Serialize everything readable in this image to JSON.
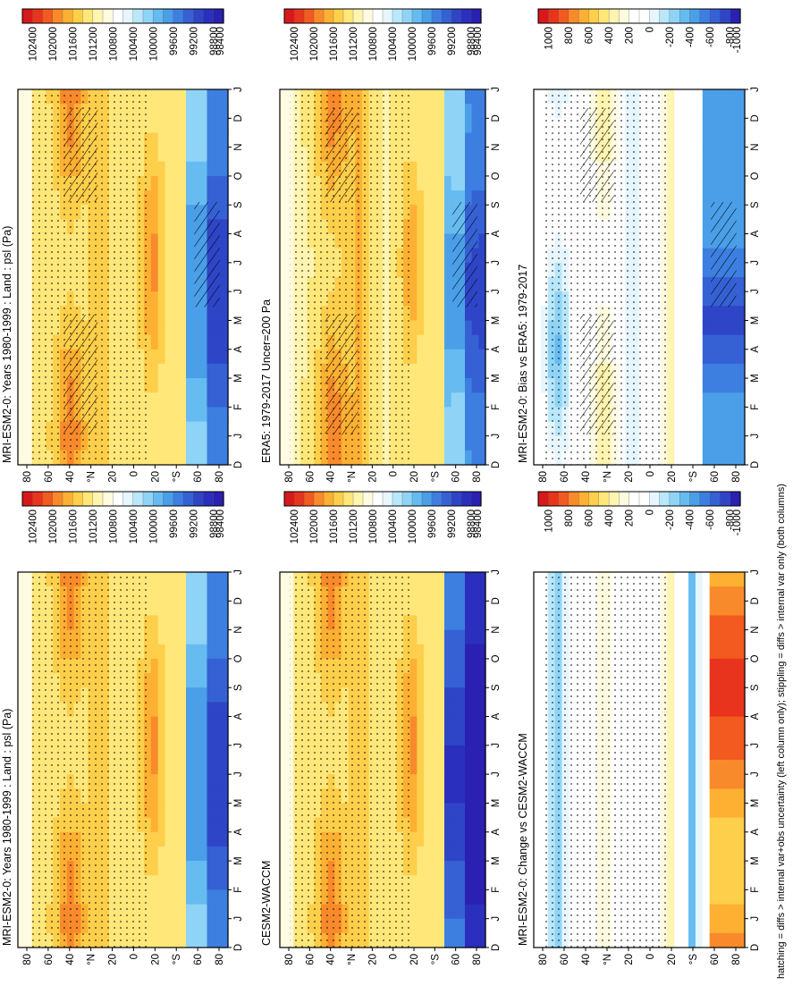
{
  "footnote": "hatching = diffs > internal var+obs uncertainty (left column only); stippling = diffs > internal var only (both columns)",
  "colorbars": {
    "absolute": {
      "labels": [
        "102400",
        "102000",
        "101600",
        "101200",
        "100800",
        "100400",
        "100000",
        "99600",
        "99200",
        "98800",
        "98400"
      ],
      "colors": [
        "#d7191c",
        "#e9341d",
        "#f25a20",
        "#f98a2b",
        "#fdb032",
        "#fecf4a",
        "#ffe77a",
        "#fff4b0",
        "#fffbe0",
        "#ffffff",
        "#e6f6ff",
        "#b9e7fb",
        "#8fd4f6",
        "#66bcf0",
        "#4a9fe8",
        "#3d7fe0",
        "#3561d4",
        "#2f45c7",
        "#2b2fbd",
        "#2a20b1"
      ]
    },
    "difference": {
      "labels": [
        "1000",
        "800",
        "600",
        "400",
        "200",
        "0",
        "-200",
        "-400",
        "-600",
        "-800",
        "-1000"
      ],
      "colors": [
        "#d7191c",
        "#e9341d",
        "#f25a20",
        "#f98a2b",
        "#fdb032",
        "#fecf4a",
        "#ffe77a",
        "#fff4b0",
        "#fffbe0",
        "#ffffff",
        "#ffffff",
        "#e6f6ff",
        "#b9e7fb",
        "#8fd4f6",
        "#66bcf0",
        "#4a9fe8",
        "#3d7fe0",
        "#3561d4",
        "#2f45c7",
        "#2a20b1"
      ]
    }
  },
  "month_labels": [
    "D",
    "J",
    "F",
    "M",
    "A",
    "M",
    "J",
    "J",
    "A",
    "S",
    "O",
    "N",
    "D",
    "J"
  ],
  "lat_labels": [
    "80",
    "60",
    "40",
    "°N",
    "20",
    "0",
    "20",
    "°S",
    "60",
    "80"
  ],
  "chart_data": [
    {
      "type": "heatmap",
      "title": "MRI-ESM2-0: Years 1980-1999 : Land : psl (Pa)",
      "x": "month of year (D–J cycle)",
      "y": "latitude (80°N to 80°S)",
      "colorbar_ticks": [
        102400,
        102000,
        101600,
        101200,
        100800,
        100400,
        100000,
        99600,
        99200,
        98800,
        98400
      ],
      "overlay": [
        "hatching",
        "stippling"
      ]
    },
    {
      "type": "heatmap",
      "title": "MRI-ESM2-0: Years 1980-1999 : Land : psl (Pa)",
      "x": "month of year (D–J cycle)",
      "y": "latitude (80°N to 80°S)",
      "colorbar_ticks": [
        102400,
        102000,
        101600,
        101200,
        100800,
        100400,
        100000,
        99600,
        99200,
        98800,
        98400
      ],
      "overlay": [
        "stippling"
      ]
    },
    {
      "type": "heatmap",
      "title": "ERA5: 1979-2017 Uncer=200 Pa",
      "x": "month of year (D–J cycle)",
      "y": "latitude (80°N to 80°S)",
      "colorbar_ticks": [
        102400,
        102000,
        101600,
        101200,
        100800,
        100400,
        100000,
        99600,
        99200,
        98800,
        98400
      ],
      "overlay": [
        "hatching",
        "stippling"
      ]
    },
    {
      "type": "heatmap",
      "title": "CESM2-WACCM",
      "x": "month of year (D–J cycle)",
      "y": "latitude (80°N to 80°S)",
      "colorbar_ticks": [
        102400,
        102000,
        101600,
        101200,
        100800,
        100400,
        100000,
        99600,
        99200,
        98800,
        98400
      ],
      "overlay": [
        "stippling"
      ]
    },
    {
      "type": "heatmap",
      "title": "MRI-ESM2-0: Bias vs ERA5: 1979-2017",
      "x": "month of year (D–J cycle)",
      "y": "latitude (80°N to 80°S)",
      "colorbar_ticks": [
        1000,
        800,
        600,
        400,
        200,
        0,
        -200,
        -400,
        -600,
        -800,
        -1000
      ],
      "overlay": [
        "hatching",
        "stippling"
      ]
    },
    {
      "type": "heatmap",
      "title": "MRI-ESM2-0: Change vs CESM2-WACCM",
      "x": "month of year (D–J cycle)",
      "y": "latitude (80°N to 80°S)",
      "colorbar_ticks": [
        1000,
        800,
        600,
        400,
        200,
        0,
        -200,
        -400,
        -600,
        -800,
        -1000
      ],
      "overlay": [
        "stippling"
      ]
    }
  ]
}
